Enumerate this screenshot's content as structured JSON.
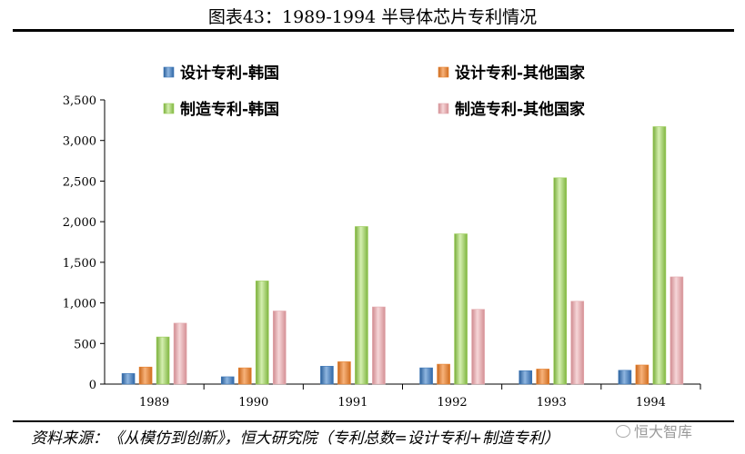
{
  "page": {
    "title": "图表43：1989-1994 半导体芯片专利情况",
    "source": "资料来源：《从模仿到创新》，恒大研究院（专利总数=设计专利+制造专利）",
    "watermark": "恒大智库"
  },
  "chart_data": {
    "type": "bar",
    "title": "图表43：1989-1994 半导体芯片专利情况",
    "xlabel": "",
    "ylabel": "",
    "categories": [
      "1989",
      "1990",
      "1991",
      "1992",
      "1993",
      "1994"
    ],
    "ylim": [
      0,
      3500
    ],
    "yticks": [
      0,
      500,
      1000,
      1500,
      2000,
      2500,
      3000,
      3500
    ],
    "ytick_labels": [
      "0",
      "500",
      "1,000",
      "1,500",
      "2,000",
      "2,500",
      "3,000",
      "3,500"
    ],
    "grid": false,
    "legend_position": "top",
    "series": [
      {
        "name": "设计专利-韩国",
        "color": "#3e78b8",
        "values": [
          130,
          90,
          220,
          200,
          165,
          170
        ]
      },
      {
        "name": "设计专利-其他国家",
        "color": "#e8822e",
        "values": [
          210,
          200,
          275,
          245,
          185,
          235
        ]
      },
      {
        "name": "制造专利-韩国",
        "color": "#9acc55",
        "values": [
          580,
          1270,
          1940,
          1850,
          2540,
          3170
        ]
      },
      {
        "name": "制造专利-其他国家",
        "color": "#e3a8ac",
        "values": [
          750,
          900,
          950,
          920,
          1020,
          1320
        ]
      }
    ]
  }
}
